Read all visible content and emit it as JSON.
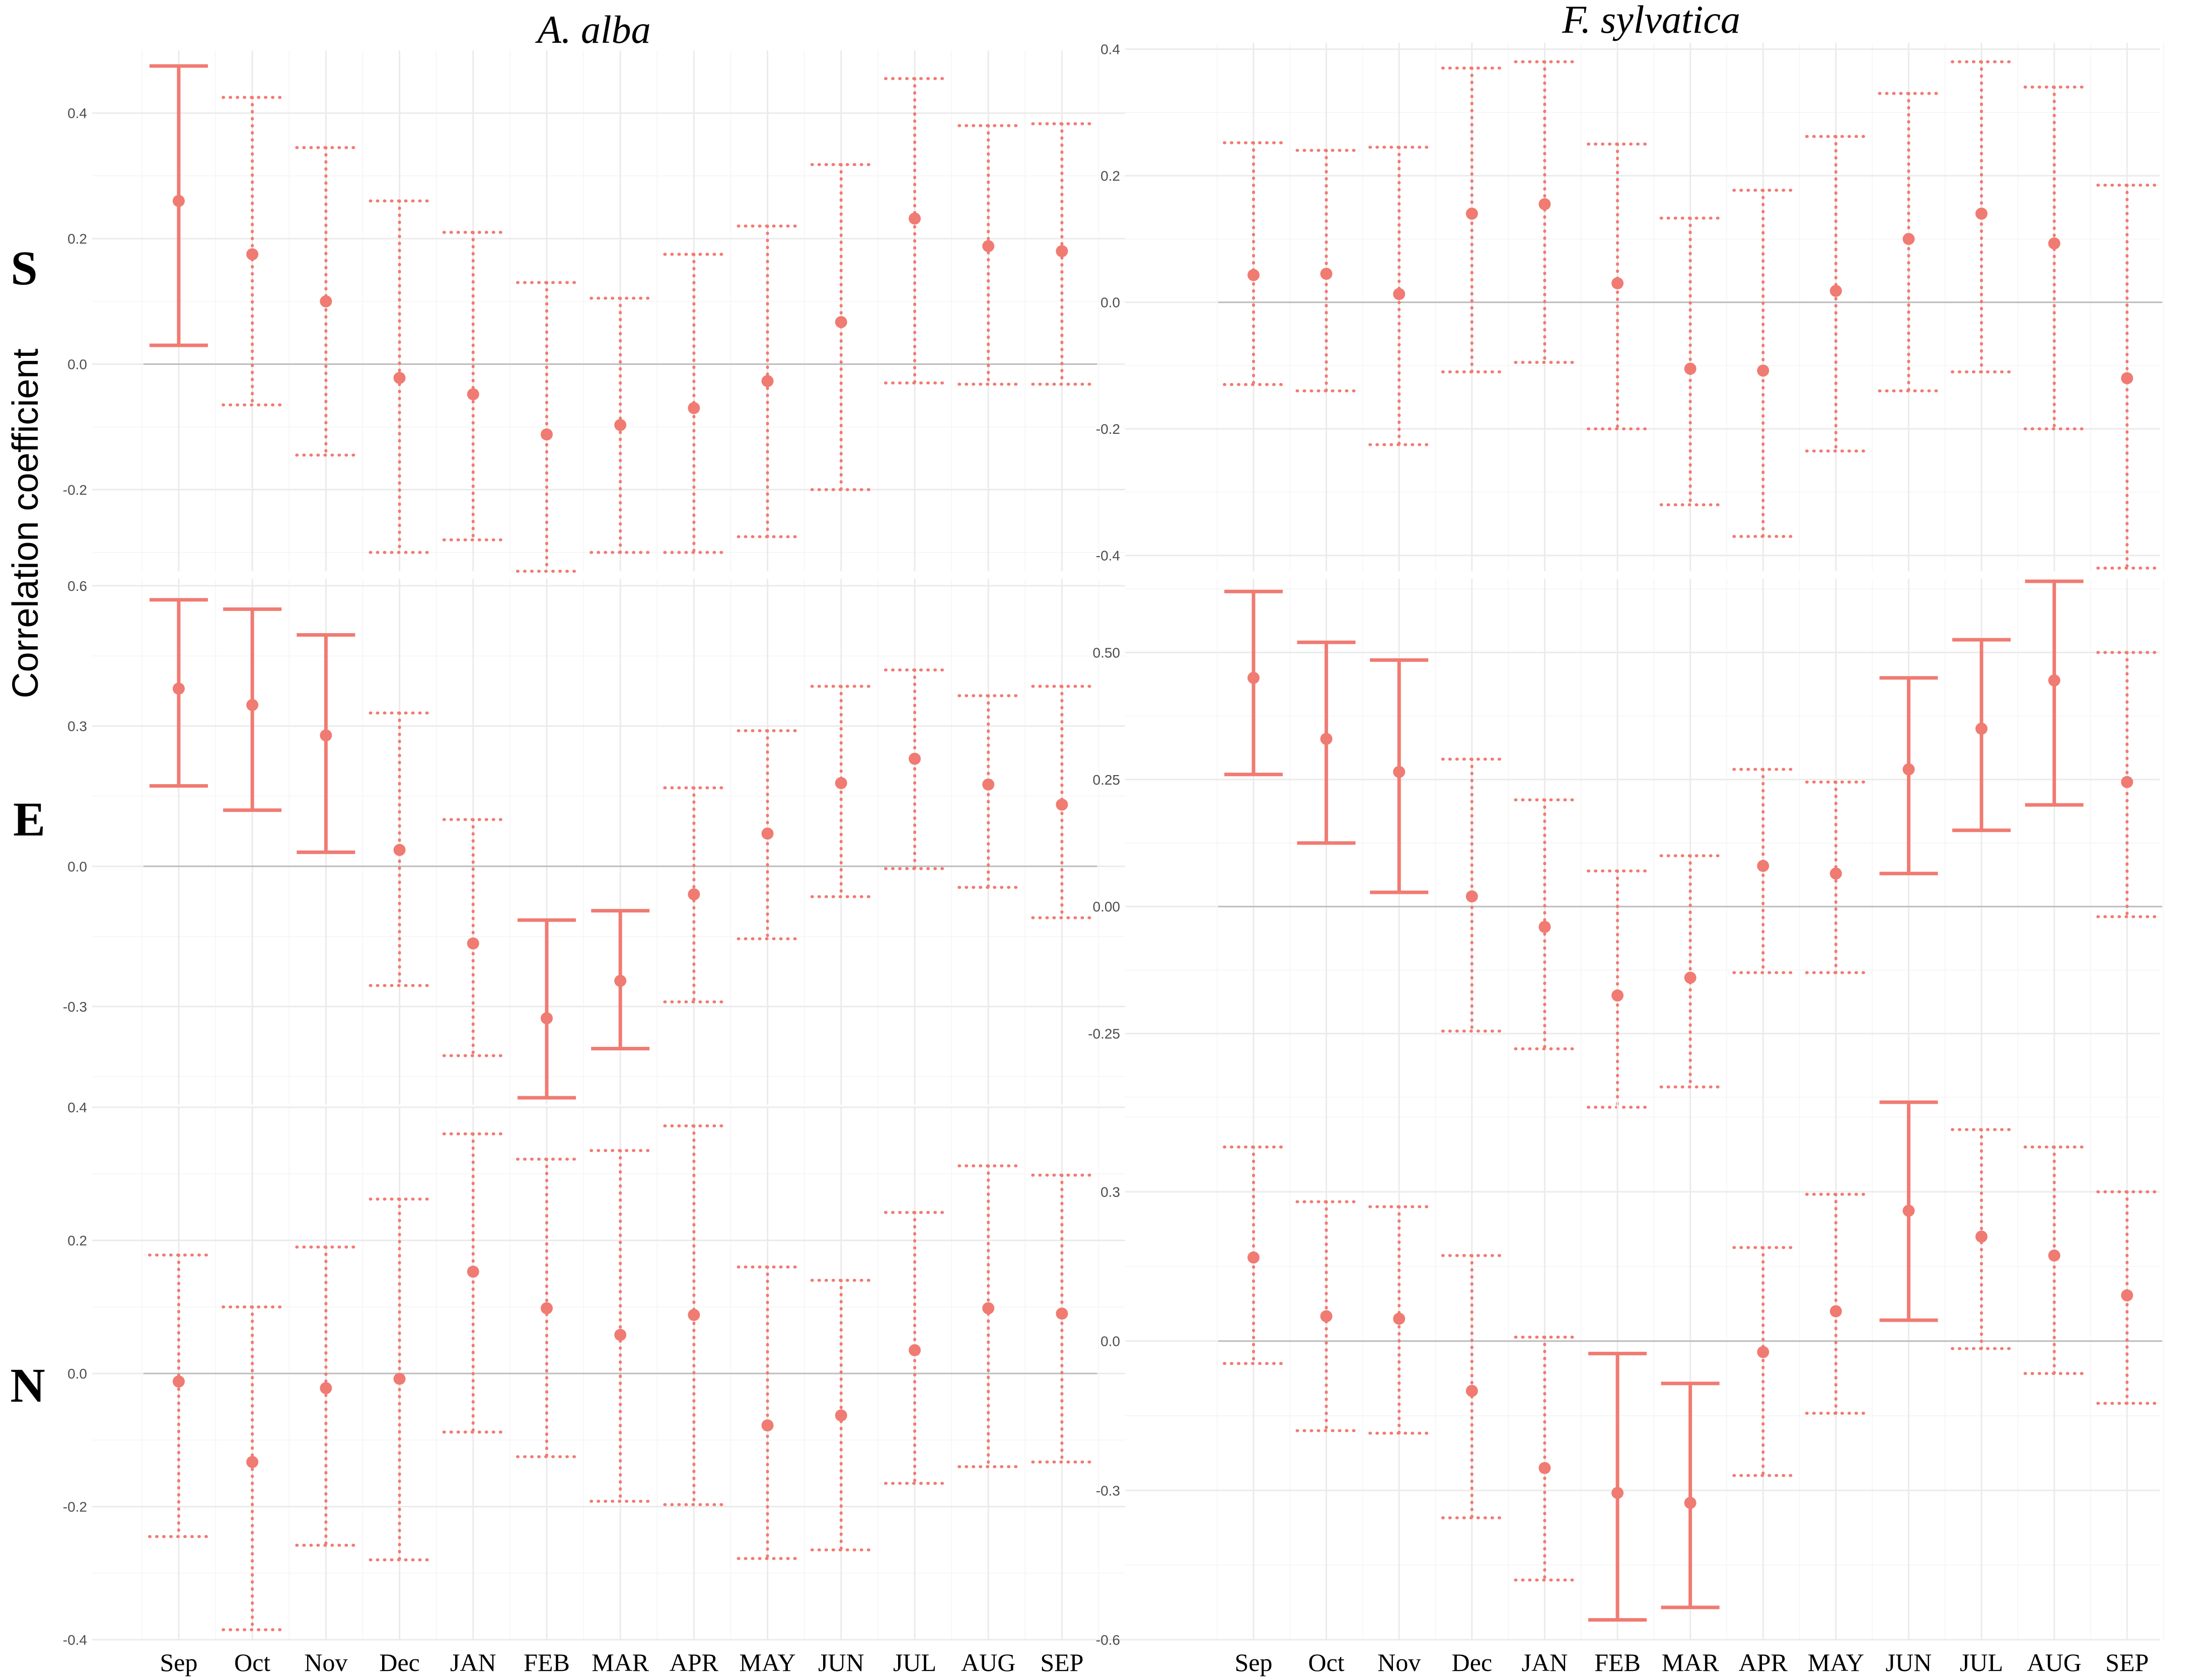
{
  "figure": {
    "titles": [
      "A. alba",
      "F. sylvatica"
    ],
    "y_axis_label": "Correlation coefficient",
    "row_labels": [
      "S",
      "E",
      "N"
    ],
    "colors": {
      "series": "#f07b72",
      "zero_line": "#bdbdbd",
      "grid": "#ebebeb"
    }
  },
  "chart_data": [
    {
      "type": "errorbar",
      "title": "A. alba",
      "row": "S",
      "ylabel": "Correlation coefficient",
      "categories": [
        "Sep",
        "Oct",
        "Nov",
        "Dec",
        "JAN",
        "FEB",
        "MAR",
        "APR",
        "MAY",
        "JUN",
        "JUL",
        "AUG",
        "SEP"
      ],
      "values": [
        0.26,
        0.175,
        0.1,
        -0.022,
        -0.048,
        -0.112,
        -0.097,
        -0.07,
        -0.027,
        0.067,
        0.232,
        0.188,
        0.18
      ],
      "lower": [
        0.03,
        -0.065,
        -0.145,
        -0.3,
        -0.28,
        -0.33,
        -0.3,
        -0.3,
        -0.275,
        -0.2,
        -0.03,
        -0.032,
        -0.032
      ],
      "upper": [
        0.475,
        0.425,
        0.345,
        0.26,
        0.21,
        0.13,
        0.105,
        0.175,
        0.22,
        0.318,
        0.455,
        0.38,
        0.383
      ],
      "significant": [
        true,
        false,
        false,
        false,
        false,
        false,
        false,
        false,
        false,
        false,
        false,
        false,
        false
      ],
      "ylim": [
        -0.33,
        0.5
      ],
      "yticks": [
        -0.2,
        0.0,
        0.2,
        0.4
      ],
      "ytick_labels": [
        "-0.2",
        "0.0",
        "0.2",
        "0.4"
      ]
    },
    {
      "type": "errorbar",
      "title": "F. sylvatica",
      "row": "S",
      "categories": [
        "Sep",
        "Oct",
        "Nov",
        "Dec",
        "JAN",
        "FEB",
        "MAR",
        "APR",
        "MAY",
        "JUN",
        "JUL",
        "AUG",
        "SEP"
      ],
      "values": [
        0.043,
        0.045,
        0.013,
        0.14,
        0.155,
        0.03,
        -0.105,
        -0.108,
        0.018,
        0.1,
        0.14,
        0.093,
        -0.12
      ],
      "lower": [
        -0.13,
        -0.14,
        -0.225,
        -0.11,
        -0.095,
        -0.2,
        -0.32,
        -0.37,
        -0.235,
        -0.14,
        -0.11,
        -0.2,
        -0.42
      ],
      "upper": [
        0.252,
        0.24,
        0.245,
        0.37,
        0.38,
        0.25,
        0.133,
        0.177,
        0.262,
        0.33,
        0.38,
        0.34,
        0.185
      ],
      "significant": [
        false,
        false,
        false,
        false,
        false,
        false,
        false,
        false,
        false,
        false,
        false,
        false,
        false
      ],
      "ylim": [
        -0.425,
        0.41
      ],
      "yticks": [
        -0.4,
        -0.2,
        0.0,
        0.2,
        0.4
      ],
      "ytick_labels": [
        "-0.4",
        "-0.2",
        "0.0",
        "0.2",
        "0.4"
      ]
    },
    {
      "type": "errorbar",
      "title": "A. alba",
      "row": "E",
      "categories": [
        "Sep",
        "Oct",
        "Nov",
        "Dec",
        "JAN",
        "FEB",
        "MAR",
        "APR",
        "MAY",
        "JUN",
        "JUL",
        "AUG",
        "SEP"
      ],
      "values": [
        0.38,
        0.345,
        0.28,
        0.035,
        -0.165,
        -0.325,
        -0.245,
        -0.06,
        0.07,
        0.178,
        0.23,
        0.175,
        0.132
      ],
      "lower": [
        0.172,
        0.12,
        0.03,
        -0.255,
        -0.405,
        -0.495,
        -0.39,
        -0.29,
        -0.155,
        -0.065,
        -0.005,
        -0.045,
        -0.11
      ],
      "upper": [
        0.57,
        0.55,
        0.495,
        0.328,
        0.1,
        -0.115,
        -0.095,
        0.168,
        0.29,
        0.385,
        0.42,
        0.365,
        0.385
      ],
      "significant": [
        true,
        true,
        true,
        false,
        false,
        true,
        true,
        false,
        false,
        false,
        false,
        false,
        false
      ],
      "ylim": [
        -0.51,
        0.615
      ],
      "yticks": [
        -0.3,
        0.0,
        0.3,
        0.6
      ],
      "ytick_labels": [
        "-0.3",
        "0.0",
        "0.3",
        "0.6"
      ]
    },
    {
      "type": "errorbar",
      "title": "F. sylvatica",
      "row": "E",
      "categories": [
        "Sep",
        "Oct",
        "Nov",
        "Dec",
        "JAN",
        "FEB",
        "MAR",
        "APR",
        "MAY",
        "JUN",
        "JUL",
        "AUG",
        "SEP"
      ],
      "values": [
        0.45,
        0.33,
        0.265,
        0.02,
        -0.04,
        -0.175,
        -0.14,
        0.08,
        0.065,
        0.27,
        0.35,
        0.445,
        0.245
      ],
      "lower": [
        0.26,
        0.125,
        0.028,
        -0.245,
        -0.28,
        -0.395,
        -0.355,
        -0.13,
        -0.13,
        0.065,
        0.15,
        0.2,
        -0.02
      ],
      "upper": [
        0.62,
        0.52,
        0.485,
        0.29,
        0.21,
        0.07,
        0.1,
        0.27,
        0.245,
        0.45,
        0.525,
        0.64,
        0.5
      ],
      "significant": [
        true,
        true,
        true,
        false,
        false,
        false,
        false,
        false,
        false,
        true,
        true,
        true,
        false
      ],
      "ylim": [
        -0.39,
        0.645
      ],
      "yticks": [
        -0.25,
        0.0,
        0.25,
        0.5
      ],
      "ytick_labels": [
        "-0.25",
        "0.00",
        "0.25",
        "0.50"
      ]
    },
    {
      "type": "errorbar",
      "title": "A. alba",
      "row": "N",
      "categories": [
        "Sep",
        "Oct",
        "Nov",
        "Dec",
        "JAN",
        "FEB",
        "MAR",
        "APR",
        "MAY",
        "JUN",
        "JUL",
        "AUG",
        "SEP"
      ],
      "values": [
        -0.012,
        -0.133,
        -0.022,
        -0.008,
        0.153,
        0.098,
        0.058,
        0.088,
        -0.078,
        -0.063,
        0.035,
        0.098,
        0.09
      ],
      "lower": [
        -0.245,
        -0.385,
        -0.258,
        -0.28,
        -0.088,
        -0.125,
        -0.192,
        -0.197,
        -0.278,
        -0.265,
        -0.165,
        -0.14,
        -0.133
      ],
      "upper": [
        0.178,
        0.1,
        0.19,
        0.262,
        0.36,
        0.322,
        0.335,
        0.372,
        0.16,
        0.14,
        0.242,
        0.312,
        0.298
      ],
      "significant": [
        false,
        false,
        false,
        false,
        false,
        false,
        false,
        false,
        false,
        false,
        false,
        false,
        false
      ],
      "ylim": [
        -0.4,
        0.4
      ],
      "yticks": [
        -0.4,
        -0.2,
        0.0,
        0.2,
        0.4
      ],
      "ytick_labels": [
        "-0.4",
        "-0.2",
        "0.0",
        "0.2",
        "0.4"
      ]
    },
    {
      "type": "errorbar",
      "title": "F. sylvatica",
      "row": "N",
      "categories": [
        "Sep",
        "Oct",
        "Nov",
        "Dec",
        "JAN",
        "FEB",
        "MAR",
        "APR",
        "MAY",
        "JUN",
        "JUL",
        "AUG",
        "SEP"
      ],
      "values": [
        0.168,
        0.05,
        0.045,
        -0.1,
        -0.255,
        -0.305,
        -0.325,
        -0.022,
        0.06,
        0.262,
        0.21,
        0.172,
        0.092
      ],
      "lower": [
        -0.045,
        -0.18,
        -0.185,
        -0.355,
        -0.48,
        -0.56,
        -0.535,
        -0.27,
        -0.145,
        0.042,
        -0.015,
        -0.065,
        -0.125
      ],
      "upper": [
        0.39,
        0.28,
        0.27,
        0.172,
        0.008,
        -0.025,
        -0.085,
        0.188,
        0.295,
        0.48,
        0.425,
        0.39,
        0.3
      ],
      "significant": [
        false,
        false,
        false,
        false,
        false,
        true,
        true,
        false,
        false,
        true,
        false,
        false,
        false
      ],
      "ylim": [
        -0.6,
        0.48
      ],
      "yticks": [
        -0.6,
        -0.3,
        0.0,
        0.3
      ],
      "ytick_labels": [
        "-0.6",
        "-0.3",
        "0.0",
        "0.3"
      ]
    }
  ]
}
